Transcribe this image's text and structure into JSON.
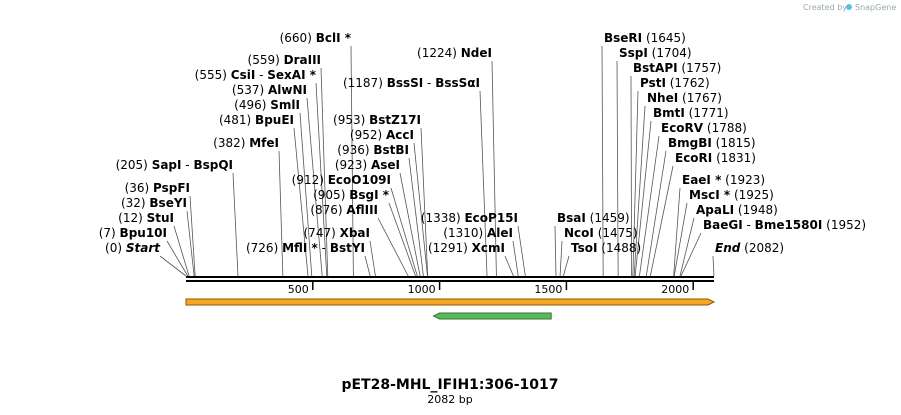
{
  "credits": {
    "prefix": "Created by",
    "brand": "SnapGene"
  },
  "map": {
    "name": "pET28-MHL_IFIH1:306-1017",
    "length_label": "2082 bp",
    "total_bp": 2082,
    "ticks": [
      "500",
      "1000",
      "1500",
      "2000"
    ],
    "tick_values": [
      500,
      1000,
      1500,
      2000
    ],
    "features": [
      {
        "name": "orange-feature",
        "start": 0,
        "end": 2082,
        "color": "#f5a623",
        "direction": "forward"
      },
      {
        "name": "green-feature",
        "start": 976,
        "end": 1440,
        "color": "#5cb85c",
        "direction": "reverse"
      }
    ],
    "sites": [
      {
        "pos": "(0)",
        "bp": 0,
        "names": [
          "Start"
        ],
        "italic": true,
        "side": "left"
      },
      {
        "pos": "(7)",
        "bp": 7,
        "names": [
          "Bpu10I"
        ],
        "side": "left"
      },
      {
        "pos": "(12)",
        "bp": 12,
        "names": [
          "StuI"
        ],
        "side": "left"
      },
      {
        "pos": "(32)",
        "bp": 32,
        "names": [
          "BseYI"
        ],
        "side": "left"
      },
      {
        "pos": "(36)",
        "bp": 36,
        "names": [
          "PspFI"
        ],
        "side": "left"
      },
      {
        "pos": "(205)",
        "bp": 205,
        "names": [
          "SapI",
          "BspQI"
        ],
        "side": "left"
      },
      {
        "pos": "(382)",
        "bp": 382,
        "names": [
          "MfeI"
        ],
        "side": "left"
      },
      {
        "pos": "(481)",
        "bp": 481,
        "names": [
          "BpuEI"
        ],
        "side": "left"
      },
      {
        "pos": "(496)",
        "bp": 496,
        "names": [
          "SmlI"
        ],
        "side": "left"
      },
      {
        "pos": "(537)",
        "bp": 537,
        "names": [
          "AlwNI"
        ],
        "side": "left"
      },
      {
        "pos": "(555)",
        "bp": 555,
        "names": [
          "CsiI",
          "SexAI *"
        ],
        "side": "left"
      },
      {
        "pos": "(559)",
        "bp": 559,
        "names": [
          "DraIII"
        ],
        "side": "left"
      },
      {
        "pos": "(660)",
        "bp": 660,
        "names": [
          "BclI *"
        ],
        "side": "left"
      },
      {
        "pos": "(726)",
        "bp": 726,
        "names": [
          "MflI *",
          "BstYI"
        ],
        "side": "left"
      },
      {
        "pos": "(747)",
        "bp": 747,
        "names": [
          "XbaI"
        ],
        "side": "left"
      },
      {
        "pos": "(876)",
        "bp": 876,
        "names": [
          "AflIII"
        ],
        "side": "left"
      },
      {
        "pos": "(905)",
        "bp": 905,
        "names": [
          "BsgI *"
        ],
        "side": "left"
      },
      {
        "pos": "(912)",
        "bp": 912,
        "names": [
          "EcoO109I"
        ],
        "side": "left"
      },
      {
        "pos": "(923)",
        "bp": 923,
        "names": [
          "AseI"
        ],
        "side": "left"
      },
      {
        "pos": "(936)",
        "bp": 936,
        "names": [
          "BstBI"
        ],
        "side": "left"
      },
      {
        "pos": "(952)",
        "bp": 952,
        "names": [
          "AccI"
        ],
        "side": "left"
      },
      {
        "pos": "(953)",
        "bp": 953,
        "names": [
          "BstZ17I"
        ],
        "side": "left"
      },
      {
        "pos": "(1187)",
        "bp": 1187,
        "names": [
          "BssSI",
          "BssSαI"
        ],
        "side": "left"
      },
      {
        "pos": "(1224)",
        "bp": 1224,
        "names": [
          "NdeI"
        ],
        "side": "left"
      },
      {
        "pos": "(1291)",
        "bp": 1291,
        "names": [
          "XcmI"
        ],
        "side": "left"
      },
      {
        "pos": "(1310)",
        "bp": 1310,
        "names": [
          "AleI"
        ],
        "side": "left"
      },
      {
        "pos": "(1338)",
        "bp": 1338,
        "names": [
          "EcoP15I"
        ],
        "side": "left"
      },
      {
        "pos": "(1459)",
        "bp": 1459,
        "names": [
          "BsaI"
        ],
        "side": "right"
      },
      {
        "pos": "(1475)",
        "bp": 1475,
        "names": [
          "NcoI"
        ],
        "side": "right"
      },
      {
        "pos": "(1488)",
        "bp": 1488,
        "names": [
          "TsoI"
        ],
        "side": "right"
      },
      {
        "pos": "(1645)",
        "bp": 1645,
        "names": [
          "BseRI"
        ],
        "side": "right"
      },
      {
        "pos": "(1704)",
        "bp": 1704,
        "names": [
          "SspI"
        ],
        "side": "right"
      },
      {
        "pos": "(1757)",
        "bp": 1757,
        "names": [
          "BstAPI"
        ],
        "side": "right"
      },
      {
        "pos": "(1762)",
        "bp": 1762,
        "names": [
          "PstI"
        ],
        "side": "right"
      },
      {
        "pos": "(1767)",
        "bp": 1767,
        "names": [
          "NheI"
        ],
        "side": "right"
      },
      {
        "pos": "(1771)",
        "bp": 1771,
        "names": [
          "BmtI"
        ],
        "side": "right"
      },
      {
        "pos": "(1788)",
        "bp": 1788,
        "names": [
          "EcoRV"
        ],
        "side": "right"
      },
      {
        "pos": "(1815)",
        "bp": 1815,
        "names": [
          "BmgBI"
        ],
        "side": "right"
      },
      {
        "pos": "(1831)",
        "bp": 1831,
        "names": [
          "EcoRI"
        ],
        "side": "right"
      },
      {
        "pos": "(1923)",
        "bp": 1923,
        "names": [
          "EaeI *"
        ],
        "side": "right"
      },
      {
        "pos": "(1925)",
        "bp": 1925,
        "names": [
          "MscI *"
        ],
        "side": "right"
      },
      {
        "pos": "(1948)",
        "bp": 1948,
        "names": [
          "ApaLI"
        ],
        "side": "right"
      },
      {
        "pos": "(1952)",
        "bp": 1952,
        "names": [
          "BaeGI",
          "Bme1580I"
        ],
        "side": "right"
      },
      {
        "pos": "(2082)",
        "bp": 2082,
        "names": [
          "End"
        ],
        "italic": true,
        "side": "right"
      }
    ]
  }
}
